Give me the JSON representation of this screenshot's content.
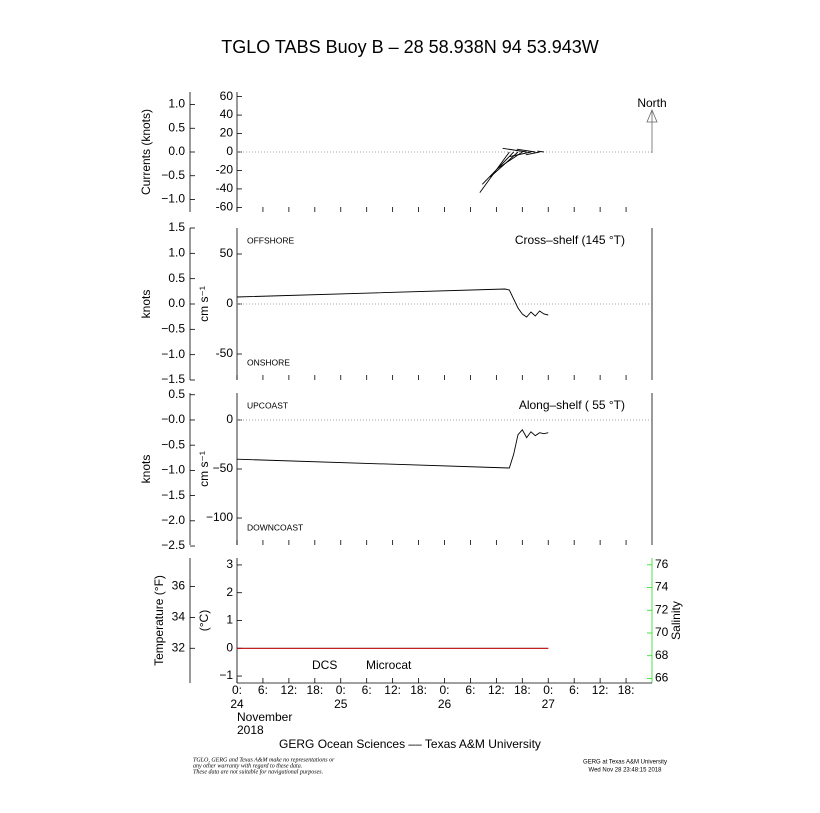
{
  "title": "TGLO TABS Buoy B – 28 58.938N  94 53.943W",
  "footer": "GERG Ocean Sciences –– Texas A&M University",
  "disclaimer": [
    "TGLO, GERG and Texas A&M make no representations or",
    "any other warranty with regard to these data.",
    "These data are not suitable for navigational purposes."
  ],
  "credit": [
    "GERG at Texas A&M University",
    "Wed Nov 28 23:48:15 2018"
  ],
  "chart_data": [
    {
      "type": "stick",
      "outer_ylabel": "Currents (knots)",
      "north_label": "North",
      "x": [
        63,
        64,
        65,
        66,
        67,
        68,
        69,
        70,
        71
      ],
      "u": [
        -32,
        -34,
        -30,
        -27,
        -26,
        -23,
        -20,
        -15,
        -7
      ],
      "v": [
        -44,
        -35,
        -27,
        -18,
        4,
        -5,
        3,
        -3,
        1
      ],
      "color": "#000000",
      "xlim": [
        0,
        96
      ],
      "ylim": [
        -65,
        65
      ],
      "yticks": [
        60,
        40,
        20,
        0,
        -20,
        -40,
        -60
      ],
      "outer_ylim": [
        -1.264,
        1.264
      ],
      "outer_yticks": [
        {
          "value": 1.0,
          "label": "1.0"
        },
        {
          "value": 0.5,
          "label": "0.5"
        },
        {
          "value": 0.0,
          "label": "0.0"
        },
        {
          "value": -0.5,
          "label": "−0.5"
        },
        {
          "value": -1.0,
          "label": "−1.0"
        }
      ]
    },
    {
      "type": "line",
      "heading": "Cross–shelf (145 °T)",
      "upper_label": "OFFSHORE",
      "lower_label": "ONSHORE",
      "ylabel": "cm s⁻¹",
      "outer_ylabel": "knots",
      "x": [
        0,
        62,
        63,
        65,
        66,
        67,
        68,
        69,
        70,
        71,
        72
      ],
      "series": [
        {
          "name": "Cross-shelf",
          "color": "#000000",
          "values": [
            7,
            15,
            14,
            -4,
            -10,
            -13,
            -8,
            -12,
            -7,
            -10,
            -11
          ]
        }
      ],
      "xlim": [
        0,
        96
      ],
      "ylim": [
        -76,
        76
      ],
      "yticks": [
        50,
        0,
        -50
      ],
      "outer_ylim": [
        -1.5,
        1.5
      ],
      "outer_yticks": [
        {
          "value": 1.5,
          "label": "1.5"
        },
        {
          "value": 1.0,
          "label": "1.0"
        },
        {
          "value": 0.5,
          "label": "0.5"
        },
        {
          "value": 0.0,
          "label": "0.0"
        },
        {
          "value": -0.5,
          "label": "−0.5"
        },
        {
          "value": -1.0,
          "label": "−1.0"
        },
        {
          "value": -1.5,
          "label": "−1.5"
        }
      ]
    },
    {
      "type": "line",
      "heading": "Along–shelf ( 55 °T)",
      "upper_label": "UPCOAST",
      "lower_label": "DOWNCOAST",
      "ylabel": "cm s⁻¹",
      "outer_ylabel": "knots",
      "x": [
        0,
        63,
        64,
        65,
        66,
        67,
        68,
        69,
        70,
        71,
        72
      ],
      "series": [
        {
          "name": "Along-shelf",
          "color": "#000000",
          "values": [
            -40,
            -49,
            -35,
            -15,
            -10,
            -18,
            -12,
            -16,
            -13,
            -14,
            -13
          ]
        }
      ],
      "xlim": [
        0,
        96
      ],
      "ylim": [
        -127.5,
        27.5
      ],
      "yticks": [
        {
          "value": 0,
          "label": "0"
        },
        {
          "value": -50,
          "label": "−50"
        },
        {
          "value": -100,
          "label": "−100"
        }
      ],
      "outer_ylim": [
        -2.48,
        0.535
      ],
      "outer_yticks": [
        {
          "value": 0.5,
          "label": "0.5"
        },
        {
          "value": 0.0,
          "label": "−0.0"
        },
        {
          "value": -0.5,
          "label": "−0.5"
        },
        {
          "value": -1.0,
          "label": "−1.0"
        },
        {
          "value": -1.5,
          "label": "−1.5"
        },
        {
          "value": -2.0,
          "label": "−2.0"
        },
        {
          "value": -2.5,
          "label": "−2.5"
        }
      ]
    },
    {
      "type": "line",
      "ylabel": "(°C)",
      "outer_ylabel": "Temperature (°F)",
      "y2label": "Salinity",
      "x": [
        0,
        72
      ],
      "series": [
        {
          "name": "DCS",
          "color": "#000000",
          "values": [
            0,
            0
          ]
        },
        {
          "name": "Microcat",
          "color": "#e00000",
          "values": [
            0,
            0
          ]
        }
      ],
      "xlim": [
        0,
        96
      ],
      "ylim": [
        -1.25,
        3.25
      ],
      "yticks": [
        3,
        2,
        1,
        0,
        {
          "value": -1,
          "label": "−1"
        }
      ],
      "outer_ylim": [
        29.75,
        37.85
      ],
      "outer_yticks": [
        36,
        34,
        32
      ],
      "y2lim": [
        65.6,
        76.6
      ],
      "y2ticks": [
        76,
        74,
        72,
        70,
        68,
        66
      ],
      "y2color": "#22dd22",
      "xticks": [
        {
          "value": 0,
          "label": "0:"
        },
        {
          "value": 6,
          "label": "6:"
        },
        {
          "value": 12,
          "label": "12:"
        },
        {
          "value": 18,
          "label": "18:"
        },
        {
          "value": 24,
          "label": "0:"
        },
        {
          "value": 30,
          "label": "6:"
        },
        {
          "value": 36,
          "label": "12:"
        },
        {
          "value": 42,
          "label": "18:"
        },
        {
          "value": 48,
          "label": "0:"
        },
        {
          "value": 54,
          "label": "6:"
        },
        {
          "value": 60,
          "label": "12:"
        },
        {
          "value": 66,
          "label": "18:"
        },
        {
          "value": 72,
          "label": "0:"
        },
        {
          "value": 78,
          "label": "6:"
        },
        {
          "value": 84,
          "label": "12:"
        },
        {
          "value": 90,
          "label": "18:"
        }
      ],
      "day_labels": [
        {
          "value": 0,
          "label": "24"
        },
        {
          "value": 24,
          "label": "25"
        },
        {
          "value": 48,
          "label": "26"
        },
        {
          "value": 72,
          "label": "27"
        }
      ],
      "month_label": "November",
      "year_label": "2018"
    }
  ]
}
